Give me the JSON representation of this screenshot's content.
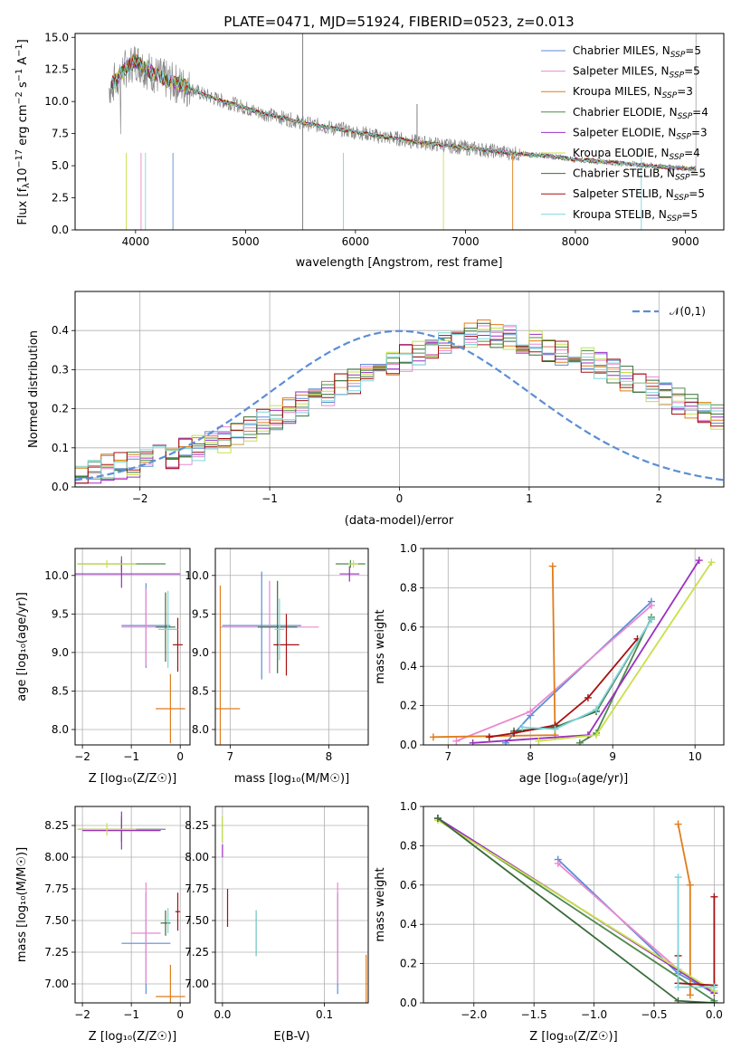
{
  "colors": [
    "#5b8ed6",
    "#e88ad0",
    "#e07c1a",
    "#4d8a4d",
    "#9b2fc0",
    "#c8e04a",
    "#3a6b3a",
    "#a51111",
    "#7fd6d9"
  ],
  "chart_data": [
    {
      "type": "line",
      "title": "PLATE=0471, MJD=51924, FIBERID=0523, z=0.013",
      "xlabel": "wavelength [Angstrom, rest frame]",
      "ylabel": "Flux [f_λ10⁻¹⁷ erg cm⁻² s⁻¹ A⁻¹]",
      "xlim": [
        3450,
        9350
      ],
      "ylim": [
        0,
        15.3
      ],
      "xticks": [
        "4000",
        "5000",
        "6000",
        "7000",
        "8000",
        "9000"
      ],
      "yticks": [
        "0.0",
        "2.5",
        "5.0",
        "7.5",
        "10.0",
        "12.5",
        "15.0"
      ],
      "grid": false,
      "legend_position": "top-right",
      "legend": [
        "Chabrier MILES, N_SSP=5",
        "Salpeter MILES, N_SSP=5",
        "Kroupa MILES, N_SSP=3",
        "Chabrier ELODIE, N_SSP=4",
        "Salpeter ELODIE, N_SSP=3",
        "Kroupa ELODIE, N_SSP=4",
        "Chabrier STELIB, N_SSP=5",
        "Salpeter STELIB, N_SSP=5",
        "Kroupa STELIB, N_SSP=5"
      ],
      "data_color": "#808080",
      "data_x": [
        3800,
        3900,
        4000,
        4100,
        4200,
        4300,
        4400,
        4500,
        4600,
        4700,
        4800,
        4900,
        5000,
        5100,
        5200,
        5300,
        5400,
        5500,
        5600,
        5700,
        5800,
        5900,
        6000,
        6100,
        6200,
        6300,
        6400,
        6500,
        6600,
        6700,
        6800,
        6900,
        7000,
        7100,
        7200,
        7300,
        7400,
        7500,
        7600,
        7700,
        7800,
        7900,
        8000,
        8200,
        8400,
        8600,
        8800,
        9000,
        9100
      ],
      "data_y": [
        11.5,
        12.5,
        13.2,
        12.5,
        12.0,
        11.6,
        11.3,
        11.0,
        10.6,
        10.3,
        10.0,
        9.8,
        9.5,
        9.2,
        9.0,
        8.8,
        8.6,
        8.4,
        8.2,
        8.1,
        7.9,
        7.8,
        7.6,
        7.5,
        7.3,
        7.2,
        7.1,
        6.9,
        6.8,
        6.7,
        6.6,
        6.5,
        6.4,
        6.3,
        6.2,
        6.1,
        6.0,
        5.9,
        5.85,
        5.8,
        5.7,
        5.6,
        5.5,
        5.35,
        5.2,
        5.05,
        4.9,
        4.8,
        4.75
      ]
    },
    {
      "type": "step",
      "xlabel": "(data-model)/error",
      "ylabel": "Normed distribution",
      "xlim": [
        -2.5,
        2.5
      ],
      "ylim": [
        0,
        0.5
      ],
      "xticks": [
        "−2",
        "−1",
        "0",
        "1",
        "2"
      ],
      "yticks": [
        "0.0",
        "0.1",
        "0.2",
        "0.3",
        "0.4"
      ],
      "grid": true,
      "legend_position": "top-right",
      "legend": [
        "𝒩(0,1)"
      ],
      "reference_curve": "normal(0,1) pdf",
      "bin_edges_start": -2.5,
      "bin_width": 0.1,
      "series_profile": [
        0.035,
        0.04,
        0.05,
        0.055,
        0.06,
        0.07,
        0.075,
        0.08,
        0.09,
        0.1,
        0.11,
        0.12,
        0.135,
        0.15,
        0.165,
        0.18,
        0.195,
        0.21,
        0.225,
        0.24,
        0.255,
        0.27,
        0.29,
        0.305,
        0.32,
        0.33,
        0.345,
        0.36,
        0.37,
        0.38,
        0.39,
        0.395,
        0.39,
        0.385,
        0.375,
        0.365,
        0.355,
        0.345,
        0.335,
        0.325,
        0.31,
        0.295,
        0.28,
        0.265,
        0.25,
        0.235,
        0.22,
        0.205,
        0.19,
        0.175,
        0.16
      ]
    },
    {
      "type": "errorbar",
      "xlabel": "Z [log₁₀(Z/Z☉)]",
      "ylabel": "age  [log₁₀(age/yr)]",
      "xlim": [
        -2.15,
        0.2
      ],
      "ylim": [
        7.8,
        10.35
      ],
      "xticks": [
        "−2",
        "−1",
        "0"
      ],
      "yticks": [
        "8.0",
        "8.5",
        "9.0",
        "9.5",
        "10.0"
      ],
      "grid": true,
      "points": [
        {
          "x": -0.7,
          "y": 9.35,
          "xerr": 0.5,
          "yerr": 0.55,
          "c": 0
        },
        {
          "x": -0.7,
          "y": 9.33,
          "xerr": 0.5,
          "yerr": 0.5,
          "c": 1
        },
        {
          "x": -0.2,
          "y": 8.27,
          "xerr": 0.3,
          "yerr": 0.45,
          "c": 2
        },
        {
          "x": -1.2,
          "y": 10.15,
          "xerr": 0.9,
          "yerr": 0.1,
          "c": 3
        },
        {
          "x": -1.2,
          "y": 10.02,
          "xerr": 1.2,
          "yerr": 0.18,
          "c": 4
        },
        {
          "x": -1.5,
          "y": 10.15,
          "xerr": 0.6,
          "yerr": 0.05,
          "c": 5
        },
        {
          "x": -0.3,
          "y": 9.33,
          "xerr": 0.2,
          "yerr": 0.45,
          "c": 6
        },
        {
          "x": -0.05,
          "y": 9.1,
          "xerr": 0.1,
          "yerr": 0.35,
          "c": 7
        },
        {
          "x": -0.25,
          "y": 9.3,
          "xerr": 0.2,
          "yerr": 0.5,
          "c": 8
        }
      ]
    },
    {
      "type": "errorbar",
      "xlabel": "mass [log₁₀(M/M☉)]",
      "ylabel": "",
      "xlim": [
        6.85,
        8.4
      ],
      "ylim": [
        7.8,
        10.35
      ],
      "xticks": [
        "7",
        "8"
      ],
      "yticks": [
        "8.0",
        "8.5",
        "9.0",
        "9.5",
        "10.0"
      ],
      "grid": true,
      "points": [
        {
          "x": 7.32,
          "y": 9.35,
          "xerr": 0.4,
          "yerr": 0.7,
          "c": 0
        },
        {
          "x": 7.4,
          "y": 9.33,
          "xerr": 0.5,
          "yerr": 0.6,
          "c": 1
        },
        {
          "x": 6.9,
          "y": 8.27,
          "xerr": 0.2,
          "yerr": 1.6,
          "c": 2
        },
        {
          "x": 8.22,
          "y": 10.15,
          "xerr": 0.15,
          "yerr": 0.05,
          "c": 3
        },
        {
          "x": 8.21,
          "y": 10.02,
          "xerr": 0.1,
          "yerr": 0.1,
          "c": 4
        },
        {
          "x": 8.25,
          "y": 10.15,
          "xerr": 0.05,
          "yerr": 0.05,
          "c": 5
        },
        {
          "x": 7.48,
          "y": 9.33,
          "xerr": 0.2,
          "yerr": 0.6,
          "c": 6
        },
        {
          "x": 7.57,
          "y": 9.1,
          "xerr": 0.13,
          "yerr": 0.4,
          "c": 7
        },
        {
          "x": 7.5,
          "y": 9.3,
          "xerr": 0.05,
          "yerr": 0.4,
          "c": 8
        }
      ]
    },
    {
      "type": "line",
      "xlabel": "age  [log₁₀(age/yr)]",
      "ylabel": "mass weight",
      "xlim": [
        6.7,
        10.35
      ],
      "ylim": [
        0,
        1.0
      ],
      "xticks": [
        "7",
        "8",
        "9",
        "10"
      ],
      "yticks": [
        "0.0",
        "0.2",
        "0.4",
        "0.6",
        "0.8",
        "1.0"
      ],
      "grid": true,
      "series": [
        {
          "c": 0,
          "x": [
            7.7,
            8.0,
            9.47
          ],
          "y": [
            0.01,
            0.15,
            0.73
          ]
        },
        {
          "c": 1,
          "x": [
            7.1,
            8.0,
            9.47
          ],
          "y": [
            0.02,
            0.17,
            0.71
          ]
        },
        {
          "c": 2,
          "x": [
            6.82,
            8.3,
            8.27
          ],
          "y": [
            0.04,
            0.05,
            0.91
          ]
        },
        {
          "c": 3,
          "x": [
            8.6,
            8.8,
            9.47
          ],
          "y": [
            0.01,
            0.06,
            0.65
          ]
        },
        {
          "c": 4,
          "x": [
            7.3,
            8.7,
            10.05
          ],
          "y": [
            0.01,
            0.05,
            0.94
          ]
        },
        {
          "c": 5,
          "x": [
            8.1,
            8.8,
            10.2
          ],
          "y": [
            0.02,
            0.05,
            0.93
          ]
        },
        {
          "c": 6,
          "x": [
            7.8,
            8.3,
            8.8,
            9.47
          ],
          "y": [
            0.07,
            0.09,
            0.17,
            0.64
          ]
        },
        {
          "c": 7,
          "x": [
            7.5,
            7.8,
            8.3,
            8.7,
            9.3
          ],
          "y": [
            0.04,
            0.06,
            0.1,
            0.24,
            0.54
          ]
        },
        {
          "c": 8,
          "x": [
            7.9,
            8.3,
            8.8,
            9.47
          ],
          "y": [
            0.09,
            0.08,
            0.18,
            0.64
          ]
        }
      ]
    },
    {
      "type": "errorbar",
      "xlabel": "Z [log₁₀(Z/Z☉)]",
      "ylabel": "mass [log₁₀(M/M☉)]",
      "xlim": [
        -2.15,
        0.2
      ],
      "ylim": [
        6.85,
        8.4
      ],
      "xticks": [
        "−2",
        "−1",
        "0"
      ],
      "yticks": [
        "7.00",
        "7.25",
        "7.50",
        "7.75",
        "8.00",
        "8.25"
      ],
      "grid": true,
      "points": [
        {
          "x": -0.7,
          "y": 7.32,
          "xerr": 0.5,
          "yerr": 0.4,
          "c": 0
        },
        {
          "x": -0.7,
          "y": 7.4,
          "xerr": 0.3,
          "yerr": 0.4,
          "c": 1
        },
        {
          "x": -0.2,
          "y": 6.9,
          "xerr": 0.3,
          "yerr": 0.25,
          "c": 2
        },
        {
          "x": -1.2,
          "y": 8.22,
          "xerr": 0.9,
          "yerr": 0.1,
          "c": 3
        },
        {
          "x": -1.2,
          "y": 8.21,
          "xerr": 0.8,
          "yerr": 0.15,
          "c": 4
        },
        {
          "x": -1.5,
          "y": 8.22,
          "xerr": 0.6,
          "yerr": 0.05,
          "c": 5
        },
        {
          "x": -0.3,
          "y": 7.48,
          "xerr": 0.1,
          "yerr": 0.1,
          "c": 6
        },
        {
          "x": -0.05,
          "y": 7.57,
          "xerr": 0.05,
          "yerr": 0.15,
          "c": 7
        },
        {
          "x": -0.25,
          "y": 7.5,
          "xerr": 0.05,
          "yerr": 0.1,
          "c": 8
        }
      ]
    },
    {
      "type": "errorbar",
      "xlabel": "E(B-V)",
      "ylabel": "",
      "xlim": [
        -0.007,
        0.143
      ],
      "ylim": [
        6.85,
        8.4
      ],
      "xticks": [
        "0.0",
        "0.1"
      ],
      "yticks": [
        "7.00",
        "7.25",
        "7.50",
        "7.75",
        "8.00",
        "8.25"
      ],
      "grid": true,
      "points": [
        {
          "x": 0.113,
          "y": 7.32,
          "xerr": 0,
          "yerr": 0.4,
          "c": 0
        },
        {
          "x": 0.113,
          "y": 7.4,
          "xerr": 0,
          "yerr": 0.4,
          "c": 1
        },
        {
          "x": 0.141,
          "y": 6.98,
          "xerr": 0,
          "yerr": 0.25,
          "c": 2
        },
        {
          "x": 0.0,
          "y": 8.22,
          "xerr": 0,
          "yerr": 0.1,
          "c": 3
        },
        {
          "x": 0.0,
          "y": 8.05,
          "xerr": 0,
          "yerr": 0.05,
          "c": 4
        },
        {
          "x": 0.0,
          "y": 8.22,
          "xerr": 0,
          "yerr": 0.1,
          "c": 5
        },
        {
          "x": 0.033,
          "y": 7.4,
          "xerr": 0,
          "yerr": 0.18,
          "c": 6
        },
        {
          "x": 0.005,
          "y": 7.6,
          "xerr": 0,
          "yerr": 0.15,
          "c": 7
        },
        {
          "x": 0.033,
          "y": 7.4,
          "xerr": 0,
          "yerr": 0.18,
          "c": 8
        }
      ]
    },
    {
      "type": "line",
      "xlabel": "Z [log₁₀(Z/Z☉)]",
      "ylabel": "mass weight",
      "xlim": [
        -2.42,
        0.08
      ],
      "ylim": [
        0,
        1.0
      ],
      "xticks": [
        "−2.0",
        "−1.5",
        "−1.0",
        "−0.5",
        "0.0"
      ],
      "yticks": [
        "0.0",
        "0.2",
        "0.4",
        "0.6",
        "0.8",
        "1.0"
      ],
      "grid": true,
      "series": [
        {
          "c": 0,
          "x": [
            -1.3,
            -0.3,
            0.0
          ],
          "y": [
            0.73,
            0.15,
            0.05
          ]
        },
        {
          "c": 1,
          "x": [
            -1.3,
            -0.3,
            0.0
          ],
          "y": [
            0.71,
            0.17,
            0.05
          ]
        },
        {
          "c": 2,
          "x": [
            -0.3,
            -0.2,
            -0.2
          ],
          "y": [
            0.91,
            0.6,
            0.04
          ]
        },
        {
          "c": 3,
          "x": [
            -2.3,
            0.0
          ],
          "y": [
            0.94,
            0.01
          ]
        },
        {
          "c": 4,
          "x": [
            -2.3,
            0.0
          ],
          "y": [
            0.94,
            0.05
          ]
        },
        {
          "c": 5,
          "x": [
            -2.3,
            0.0
          ],
          "y": [
            0.93,
            0.06
          ]
        },
        {
          "c": 6,
          "x": [
            -2.3,
            -0.3,
            0.0
          ],
          "y": [
            0.94,
            0.01,
            0.0
          ]
        },
        {
          "c": 7,
          "x": [
            -0.3,
            -0.3,
            0.0,
            0.0
          ],
          "y": [
            0.24,
            0.1,
            0.09,
            0.54
          ]
        },
        {
          "c": 8,
          "x": [
            -0.3,
            -0.3,
            0.0
          ],
          "y": [
            0.64,
            0.08,
            0.08
          ]
        }
      ]
    }
  ]
}
